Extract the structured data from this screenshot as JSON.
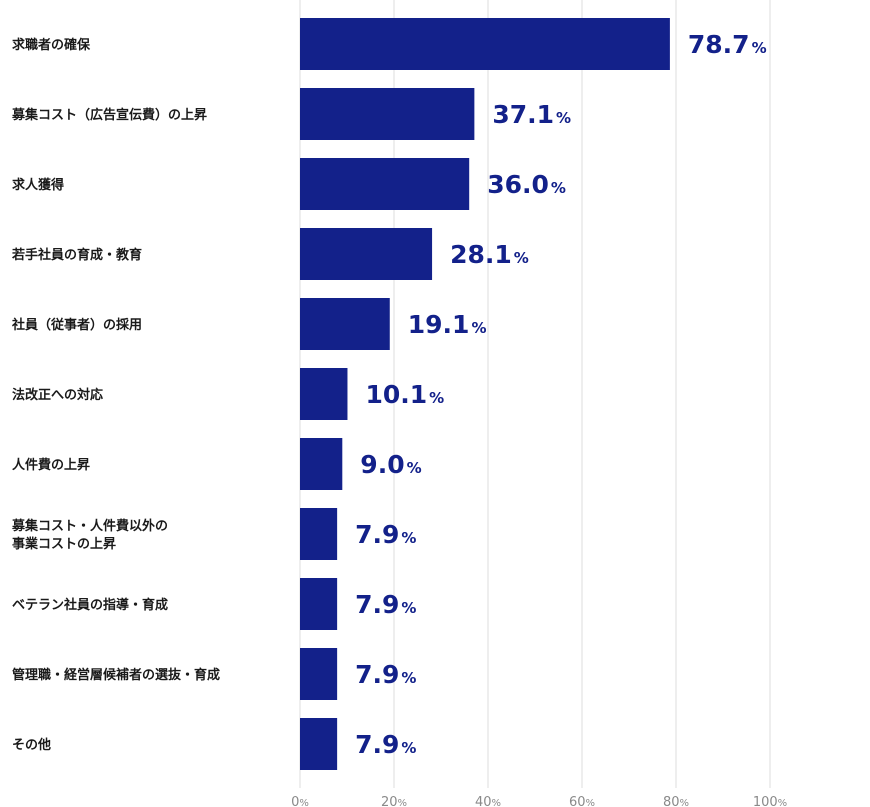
{
  "chart_data": {
    "type": "bar",
    "orientation": "horizontal",
    "unit": "%",
    "categories": [
      [
        "求職者の確保"
      ],
      [
        "募集コスト（広告宣伝費）の上昇"
      ],
      [
        "求人獲得"
      ],
      [
        "若手社員の育成・教育"
      ],
      [
        "社員（従事者）の採用"
      ],
      [
        "法改正への対応"
      ],
      [
        "人件費の上昇"
      ],
      [
        "募集コスト・人件費以外の",
        "事業コストの上昇"
      ],
      [
        "ベテラン社員の指導・育成"
      ],
      [
        "管理職・経営層候補者の選抜・育成"
      ],
      [
        "その他"
      ]
    ],
    "values": [
      78.7,
      37.1,
      36.0,
      28.1,
      19.1,
      10.1,
      9.0,
      7.9,
      7.9,
      7.9,
      7.9
    ],
    "value_labels": [
      "78.7",
      "37.1",
      "36.0",
      "28.1",
      "19.1",
      "10.1",
      "9.0",
      "7.9",
      "7.9",
      "7.9",
      "7.9"
    ],
    "xlim": [
      0,
      100
    ],
    "xticks": [
      "0",
      "20",
      "40",
      "60",
      "80",
      "100"
    ],
    "grid": true,
    "bar_color": "#13218a"
  }
}
